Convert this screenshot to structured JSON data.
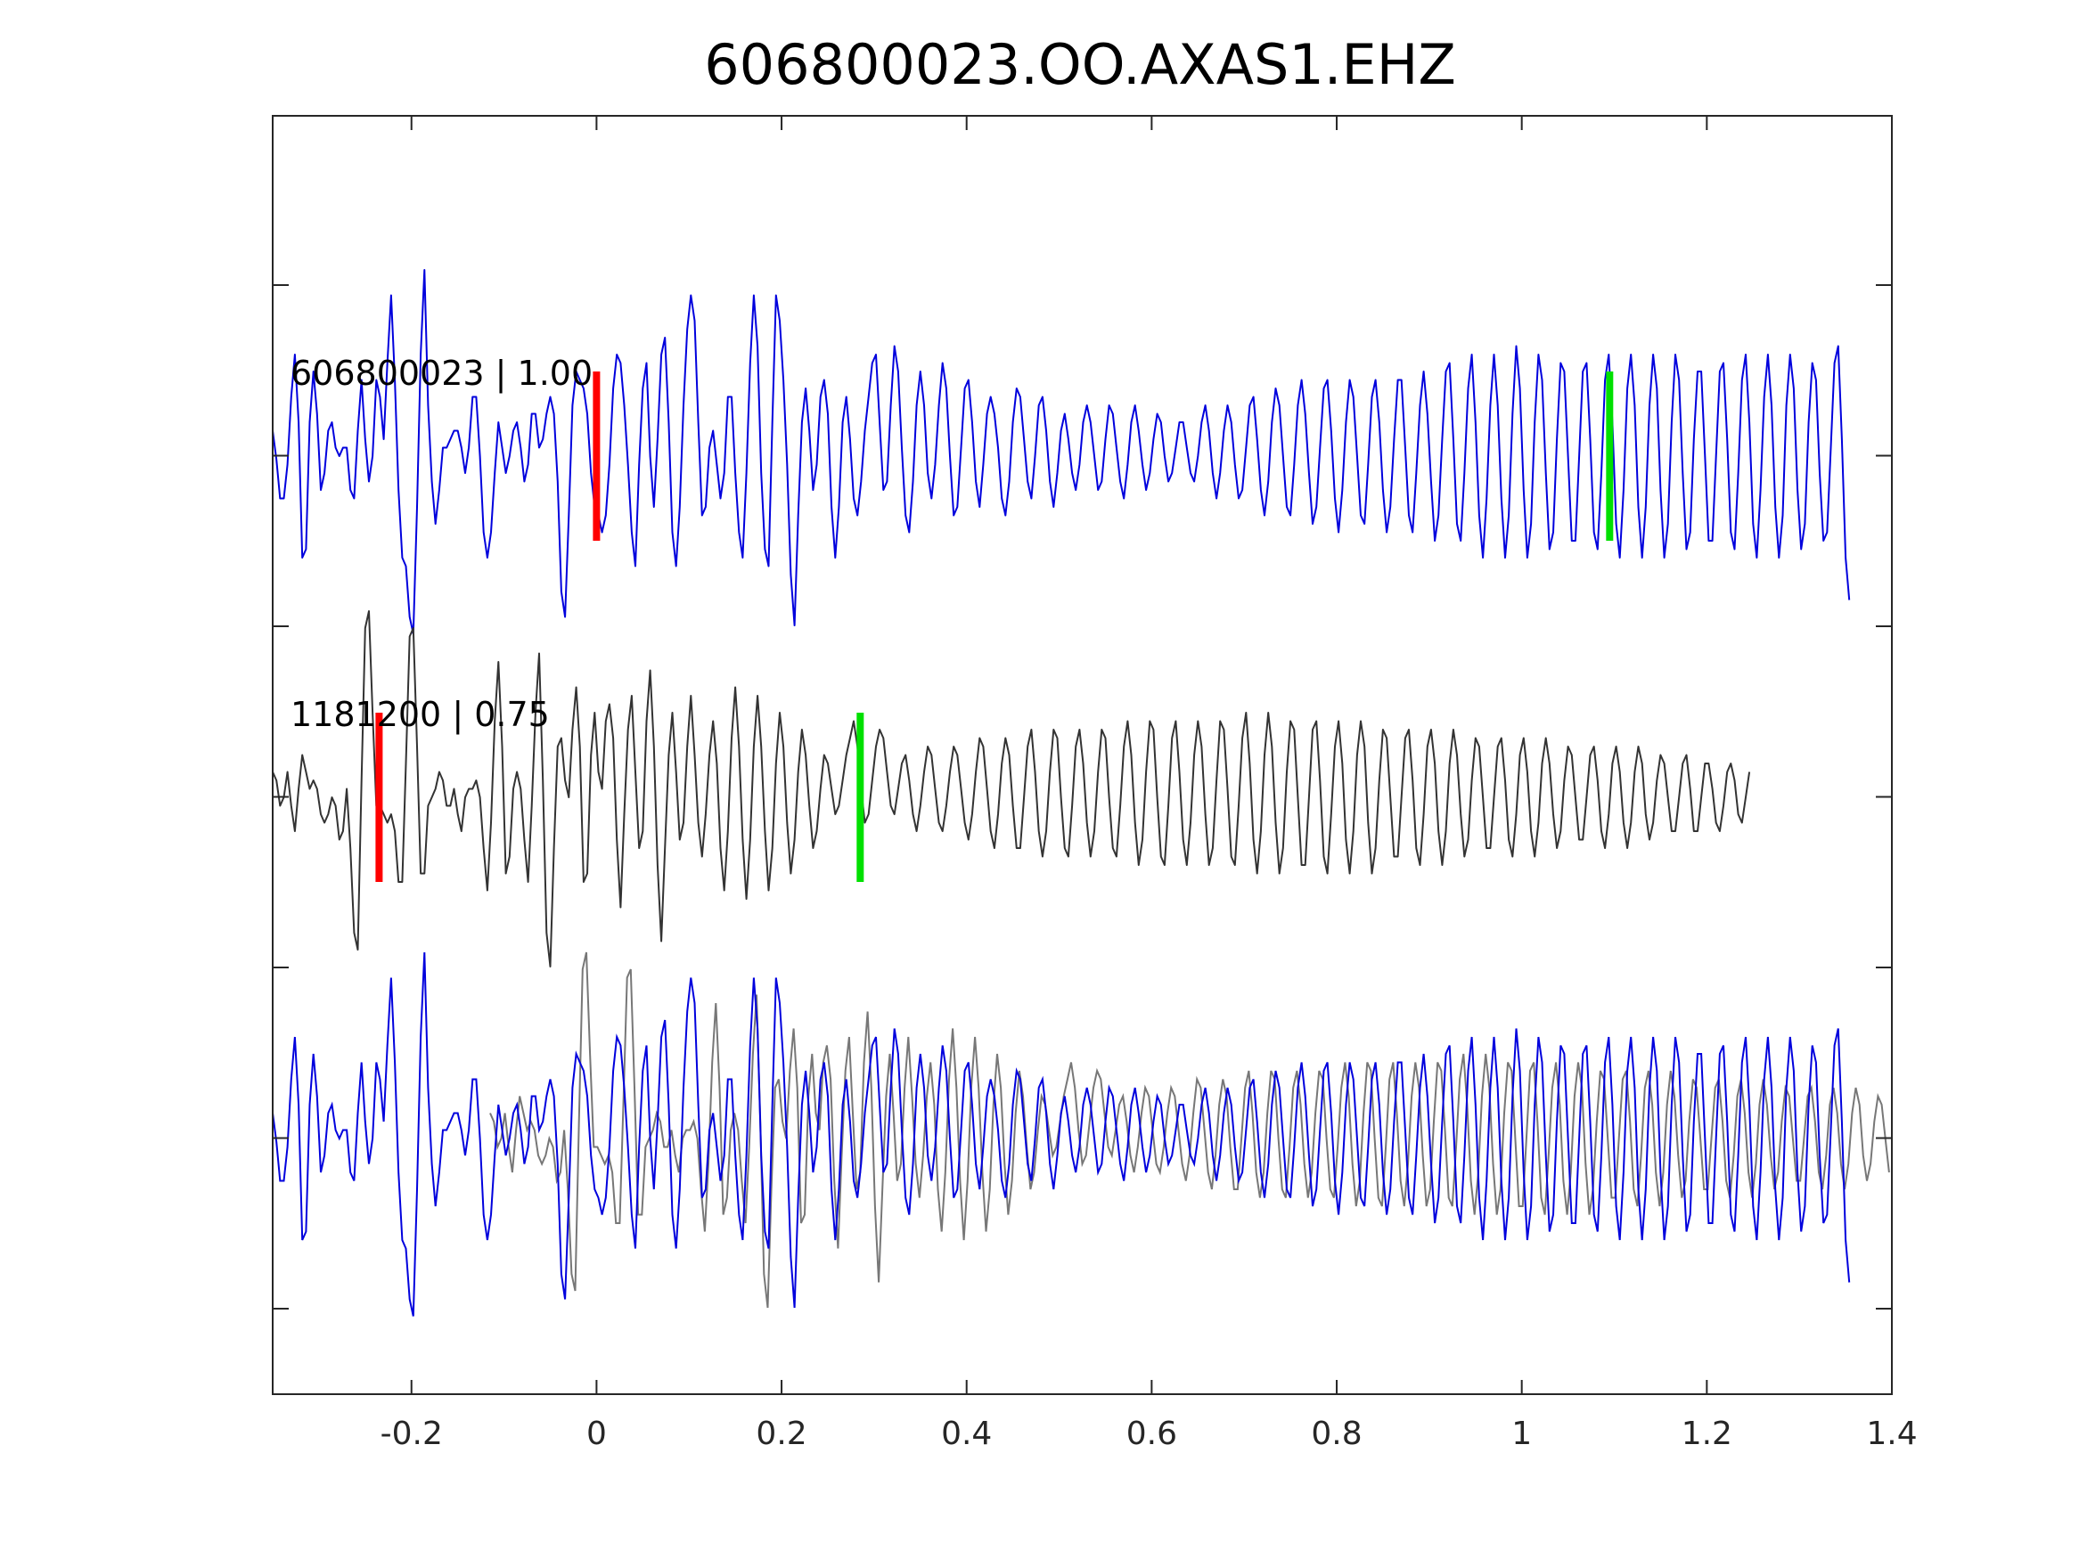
{
  "chart_data": {
    "type": "line",
    "title": "606800023.OO.AXAS1.EHZ",
    "xlabel": "",
    "ylabel": "",
    "xlim": [
      -0.35,
      1.4
    ],
    "xticks": [
      -0.2,
      0,
      0.2,
      0.4,
      0.6,
      0.8,
      1,
      1.2,
      1.4
    ],
    "xtick_labels": [
      "-0.2",
      "0",
      "0.2",
      "0.4",
      "0.6",
      "0.8",
      "1",
      "1.2",
      "1.4"
    ],
    "yticks_count": 7,
    "grid": false,
    "traces": [
      {
        "label": "606800023 | 1.00",
        "color": "#0000dd",
        "row": 0,
        "t_start": -0.35,
        "dt": 0.004,
        "values": [
          0.15,
          -0.02,
          -0.25,
          -0.25,
          -0.05,
          0.35,
          0.6,
          0.2,
          -0.6,
          -0.55,
          0.2,
          0.5,
          0.25,
          -0.2,
          -0.1,
          0.15,
          0.2,
          0.05,
          0.0,
          0.05,
          0.05,
          -0.2,
          -0.25,
          0.15,
          0.45,
          0.1,
          -0.15,
          0.0,
          0.45,
          0.35,
          0.1,
          0.55,
          0.95,
          0.45,
          -0.2,
          -0.6,
          -0.65,
          -0.95,
          -1.05,
          -0.3,
          0.6,
          1.1,
          0.3,
          -0.15,
          -0.4,
          -0.2,
          0.05,
          0.05,
          0.1,
          0.15,
          0.15,
          0.05,
          -0.1,
          0.05,
          0.35,
          0.35,
          0.0,
          -0.45,
          -0.6,
          -0.45,
          -0.1,
          0.2,
          0.05,
          -0.1,
          0.0,
          0.15,
          0.2,
          0.05,
          -0.15,
          -0.05,
          0.25,
          0.25,
          0.05,
          0.1,
          0.25,
          0.35,
          0.25,
          -0.15,
          -0.8,
          -0.95,
          -0.35,
          0.3,
          0.5,
          0.45,
          0.4,
          0.25,
          -0.1,
          -0.3,
          -0.35,
          -0.45,
          -0.35,
          -0.05,
          0.4,
          0.6,
          0.55,
          0.3,
          -0.05,
          -0.45,
          -0.65,
          -0.05,
          0.4,
          0.55,
          0.0,
          -0.3,
          0.1,
          0.6,
          0.7,
          0.2,
          -0.45,
          -0.65,
          -0.3,
          0.3,
          0.75,
          0.95,
          0.8,
          0.2,
          -0.35,
          -0.3,
          0.05,
          0.15,
          -0.05,
          -0.25,
          -0.1,
          0.35,
          0.35,
          -0.1,
          -0.45,
          -0.6,
          -0.1,
          0.55,
          0.95,
          0.65,
          -0.1,
          -0.55,
          -0.65,
          0.2,
          0.95,
          0.8,
          0.45,
          -0.05,
          -0.7,
          -1.0,
          -0.35,
          0.2,
          0.4,
          0.15,
          -0.2,
          -0.05,
          0.35,
          0.45,
          0.25,
          -0.3,
          -0.6,
          -0.3,
          0.2,
          0.35,
          0.1,
          -0.25,
          -0.35,
          -0.15,
          0.15,
          0.35,
          0.55,
          0.6,
          0.2,
          -0.2,
          -0.15,
          0.3,
          0.65,
          0.5,
          0.05,
          -0.35,
          -0.45,
          -0.15,
          0.3,
          0.5,
          0.3,
          -0.1,
          -0.25,
          -0.05,
          0.3,
          0.55,
          0.4,
          0.0,
          -0.35,
          -0.3,
          0.05,
          0.4,
          0.45,
          0.2,
          -0.15,
          -0.3,
          -0.05,
          0.25,
          0.35,
          0.25,
          0.05,
          -0.25,
          -0.35,
          -0.15,
          0.2,
          0.4,
          0.35,
          0.1,
          -0.15,
          -0.25,
          0.0,
          0.3,
          0.35,
          0.15,
          -0.15,
          -0.3,
          -0.1,
          0.15,
          0.25,
          0.1,
          -0.1,
          -0.2,
          -0.05,
          0.2,
          0.3,
          0.2,
          0.0,
          -0.2,
          -0.15,
          0.1,
          0.3,
          0.25,
          0.05,
          -0.15,
          -0.25,
          -0.05,
          0.2,
          0.3,
          0.15,
          -0.05,
          -0.2,
          -0.1,
          0.1,
          0.25,
          0.2,
          0.0,
          -0.15,
          -0.1,
          0.05,
          0.2,
          0.2,
          0.05,
          -0.1,
          -0.15,
          0.0,
          0.2,
          0.3,
          0.15,
          -0.1,
          -0.25,
          -0.1,
          0.15,
          0.3,
          0.2,
          -0.05,
          -0.25,
          -0.2,
          0.05,
          0.3,
          0.35,
          0.1,
          -0.2,
          -0.35,
          -0.15,
          0.2,
          0.4,
          0.3,
          0.0,
          -0.3,
          -0.35,
          -0.05,
          0.3,
          0.45,
          0.25,
          -0.1,
          -0.4,
          -0.3,
          0.05,
          0.4,
          0.45,
          0.15,
          -0.25,
          -0.45,
          -0.2,
          0.2,
          0.45,
          0.35,
          0.0,
          -0.35,
          -0.4,
          -0.05,
          0.35,
          0.45,
          0.2,
          -0.2,
          -0.45,
          -0.3,
          0.1,
          0.45,
          0.45,
          0.05,
          -0.35,
          -0.45,
          -0.1,
          0.3,
          0.5,
          0.25,
          -0.15,
          -0.5,
          -0.35,
          0.1,
          0.5,
          0.55,
          0.1,
          -0.4,
          -0.5,
          -0.1,
          0.4,
          0.6,
          0.2,
          -0.35,
          -0.6,
          -0.25,
          0.3,
          0.6,
          0.3,
          -0.25,
          -0.6,
          -0.35,
          0.25,
          0.65,
          0.4,
          -0.2,
          -0.6,
          -0.4,
          0.2,
          0.6,
          0.45,
          -0.1,
          -0.55,
          -0.45,
          0.1,
          0.55,
          0.5,
          0.0,
          -0.5,
          -0.5,
          0.0,
          0.5,
          0.55,
          0.1,
          -0.45,
          -0.55,
          -0.1,
          0.45,
          0.6,
          0.2,
          -0.4,
          -0.6,
          -0.2,
          0.4,
          0.6,
          0.3,
          -0.3,
          -0.6,
          -0.3,
          0.3,
          0.6,
          0.4,
          -0.2,
          -0.6,
          -0.4,
          0.2,
          0.6,
          0.45,
          -0.1,
          -0.55,
          -0.45,
          0.1,
          0.5,
          0.5,
          0.0,
          -0.5,
          -0.5,
          0.0,
          0.5,
          0.55,
          0.1,
          -0.45,
          -0.55,
          -0.1,
          0.45,
          0.6,
          0.2,
          -0.4,
          -0.6,
          -0.2,
          0.35,
          0.6,
          0.3,
          -0.3,
          -0.6,
          -0.35,
          0.3,
          0.6,
          0.4,
          -0.2,
          -0.55,
          -0.4,
          0.2,
          0.55,
          0.45,
          -0.1,
          -0.5,
          -0.45,
          0.05,
          0.55,
          0.65,
          0.1,
          -0.6,
          -0.85
        ]
      },
      {
        "label": "1181200 | 0.75",
        "color": "#333333",
        "row": 1,
        "t_start": -0.35,
        "dt": 0.004,
        "values": [
          0.15,
          0.1,
          -0.05,
          0.0,
          0.15,
          -0.05,
          -0.2,
          0.05,
          0.25,
          0.15,
          0.05,
          0.1,
          0.05,
          -0.1,
          -0.15,
          -0.1,
          0.0,
          -0.05,
          -0.25,
          -0.2,
          0.05,
          -0.3,
          -0.8,
          -0.9,
          0.1,
          1.0,
          1.1,
          0.5,
          -0.05,
          -0.05,
          -0.1,
          -0.15,
          -0.1,
          -0.2,
          -0.5,
          -0.5,
          0.2,
          0.95,
          1.0,
          0.3,
          -0.45,
          -0.45,
          -0.05,
          0.0,
          0.05,
          0.15,
          0.1,
          -0.05,
          -0.05,
          0.05,
          -0.1,
          -0.2,
          0.0,
          0.05,
          0.05,
          0.1,
          0.0,
          -0.3,
          -0.55,
          -0.15,
          0.45,
          0.8,
          0.3,
          -0.45,
          -0.35,
          0.05,
          0.15,
          0.05,
          -0.25,
          -0.5,
          -0.05,
          0.5,
          0.85,
          0.1,
          -0.8,
          -1.0,
          -0.3,
          0.3,
          0.35,
          0.1,
          0.0,
          0.4,
          0.65,
          0.3,
          -0.5,
          -0.45,
          0.25,
          0.5,
          0.15,
          0.05,
          0.45,
          0.55,
          0.35,
          -0.25,
          -0.65,
          -0.1,
          0.4,
          0.6,
          0.15,
          -0.3,
          -0.2,
          0.45,
          0.75,
          0.3,
          -0.4,
          -0.85,
          -0.3,
          0.25,
          0.5,
          0.15,
          -0.25,
          -0.15,
          0.3,
          0.6,
          0.25,
          -0.15,
          -0.35,
          -0.1,
          0.25,
          0.45,
          0.2,
          -0.3,
          -0.55,
          -0.2,
          0.35,
          0.65,
          0.3,
          -0.25,
          -0.6,
          -0.25,
          0.3,
          0.6,
          0.3,
          -0.2,
          -0.55,
          -0.3,
          0.2,
          0.5,
          0.3,
          -0.15,
          -0.45,
          -0.25,
          0.15,
          0.4,
          0.25,
          -0.05,
          -0.3,
          -0.2,
          0.05,
          0.25,
          0.2,
          0.05,
          -0.1,
          -0.05,
          0.1,
          0.25,
          0.35,
          0.45,
          0.3,
          0.05,
          -0.15,
          -0.1,
          0.1,
          0.3,
          0.4,
          0.35,
          0.15,
          -0.05,
          -0.1,
          0.05,
          0.2,
          0.25,
          0.1,
          -0.1,
          -0.2,
          -0.05,
          0.15,
          0.3,
          0.25,
          0.05,
          -0.15,
          -0.2,
          -0.05,
          0.15,
          0.3,
          0.25,
          0.05,
          -0.15,
          -0.25,
          -0.1,
          0.15,
          0.35,
          0.3,
          0.05,
          -0.2,
          -0.3,
          -0.1,
          0.2,
          0.35,
          0.25,
          -0.05,
          -0.3,
          -0.3,
          0.0,
          0.3,
          0.4,
          0.15,
          -0.2,
          -0.35,
          -0.2,
          0.15,
          0.4,
          0.35,
          0.0,
          -0.3,
          -0.35,
          -0.05,
          0.3,
          0.4,
          0.2,
          -0.15,
          -0.35,
          -0.2,
          0.15,
          0.4,
          0.35,
          0.0,
          -0.3,
          -0.35,
          -0.05,
          0.3,
          0.45,
          0.25,
          -0.15,
          -0.4,
          -0.25,
          0.15,
          0.45,
          0.4,
          0.0,
          -0.35,
          -0.4,
          -0.05,
          0.35,
          0.45,
          0.15,
          -0.25,
          -0.4,
          -0.15,
          0.25,
          0.45,
          0.3,
          -0.1,
          -0.4,
          -0.3,
          0.1,
          0.45,
          0.4,
          0.05,
          -0.35,
          -0.4,
          -0.05,
          0.35,
          0.5,
          0.2,
          -0.25,
          -0.45,
          -0.2,
          0.25,
          0.5,
          0.3,
          -0.15,
          -0.45,
          -0.3,
          0.15,
          0.45,
          0.4,
          0.0,
          -0.4,
          -0.4,
          0.0,
          0.4,
          0.45,
          0.1,
          -0.35,
          -0.45,
          -0.1,
          0.3,
          0.45,
          0.2,
          -0.25,
          -0.45,
          -0.2,
          0.25,
          0.45,
          0.3,
          -0.15,
          -0.45,
          -0.3,
          0.1,
          0.4,
          0.35,
          0.0,
          -0.35,
          -0.35,
          0.0,
          0.35,
          0.4,
          0.1,
          -0.3,
          -0.4,
          -0.1,
          0.3,
          0.4,
          0.2,
          -0.2,
          -0.4,
          -0.2,
          0.2,
          0.4,
          0.25,
          -0.1,
          -0.35,
          -0.25,
          0.1,
          0.35,
          0.3,
          0.0,
          -0.3,
          -0.3,
          0.0,
          0.3,
          0.35,
          0.1,
          -0.25,
          -0.35,
          -0.1,
          0.25,
          0.35,
          0.15,
          -0.2,
          -0.35,
          -0.15,
          0.2,
          0.35,
          0.2,
          -0.1,
          -0.3,
          -0.2,
          0.1,
          0.3,
          0.25,
          0.0,
          -0.25,
          -0.25,
          0.0,
          0.25,
          0.3,
          0.1,
          -0.2,
          -0.3,
          -0.1,
          0.2,
          0.3,
          0.15,
          -0.15,
          -0.3,
          -0.15,
          0.15,
          0.3,
          0.2,
          -0.1,
          -0.25,
          -0.15,
          0.1,
          0.25,
          0.2,
          0.0,
          -0.2,
          -0.2,
          0.0,
          0.2,
          0.25,
          0.05,
          -0.2,
          -0.2,
          0.0,
          0.2,
          0.2,
          0.05,
          -0.15,
          -0.2,
          -0.05,
          0.15,
          0.2,
          0.1,
          -0.1,
          -0.15,
          0.0,
          0.15
        ]
      }
    ],
    "picks": [
      {
        "row": 0,
        "t": 0.0,
        "color": "#ff0000"
      },
      {
        "row": 0,
        "t": 1.095,
        "color": "#00e000"
      },
      {
        "row": 1,
        "t": -0.235,
        "color": "#ff0000"
      },
      {
        "row": 1,
        "t": 0.285,
        "color": "#00e000"
      }
    ],
    "overlay": {
      "row": 2,
      "shifted_trace": {
        "source_trace": 1,
        "shift": 0.235,
        "color": "#777777"
      },
      "reference_trace": {
        "source_trace": 0,
        "color": "#0000dd"
      }
    }
  }
}
